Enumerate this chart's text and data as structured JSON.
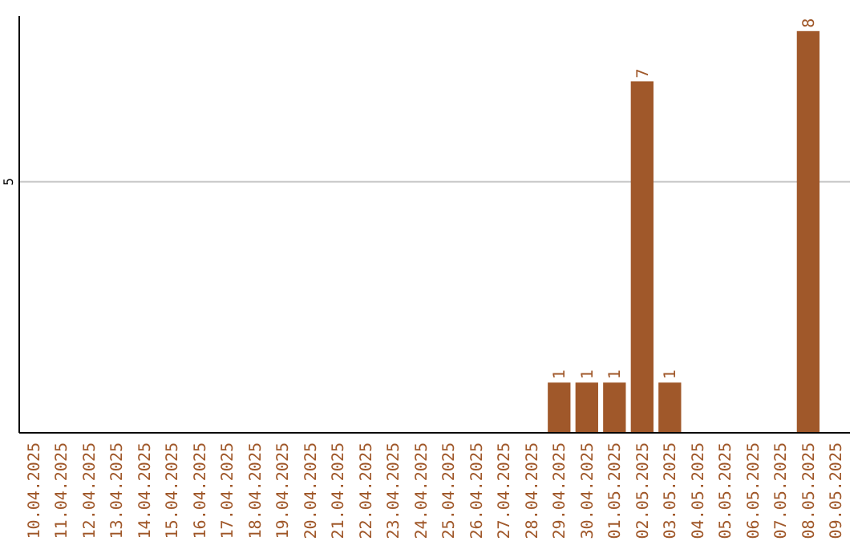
{
  "chart_data": {
    "type": "bar",
    "categories": [
      "10.04.2025",
      "11.04.2025",
      "12.04.2025",
      "13.04.2025",
      "14.04.2025",
      "15.04.2025",
      "16.04.2025",
      "17.04.2025",
      "18.04.2025",
      "19.04.2025",
      "20.04.2025",
      "21.04.2025",
      "22.04.2025",
      "23.04.2025",
      "24.04.2025",
      "25.04.2025",
      "26.04.2025",
      "27.04.2025",
      "28.04.2025",
      "29.04.2025",
      "30.04.2025",
      "01.05.2025",
      "02.05.2025",
      "03.05.2025",
      "04.05.2025",
      "05.05.2025",
      "06.05.2025",
      "07.05.2025",
      "08.05.2025",
      "09.05.2025"
    ],
    "values": [
      null,
      null,
      null,
      null,
      null,
      null,
      null,
      null,
      null,
      null,
      null,
      null,
      null,
      null,
      null,
      null,
      null,
      null,
      null,
      1,
      1,
      1,
      7,
      1,
      null,
      null,
      null,
      null,
      8,
      null
    ],
    "data_labels": true,
    "color": "#a0582a",
    "ylim": [
      0,
      8.3
    ],
    "yticks": [
      5
    ],
    "grid": "y"
  }
}
